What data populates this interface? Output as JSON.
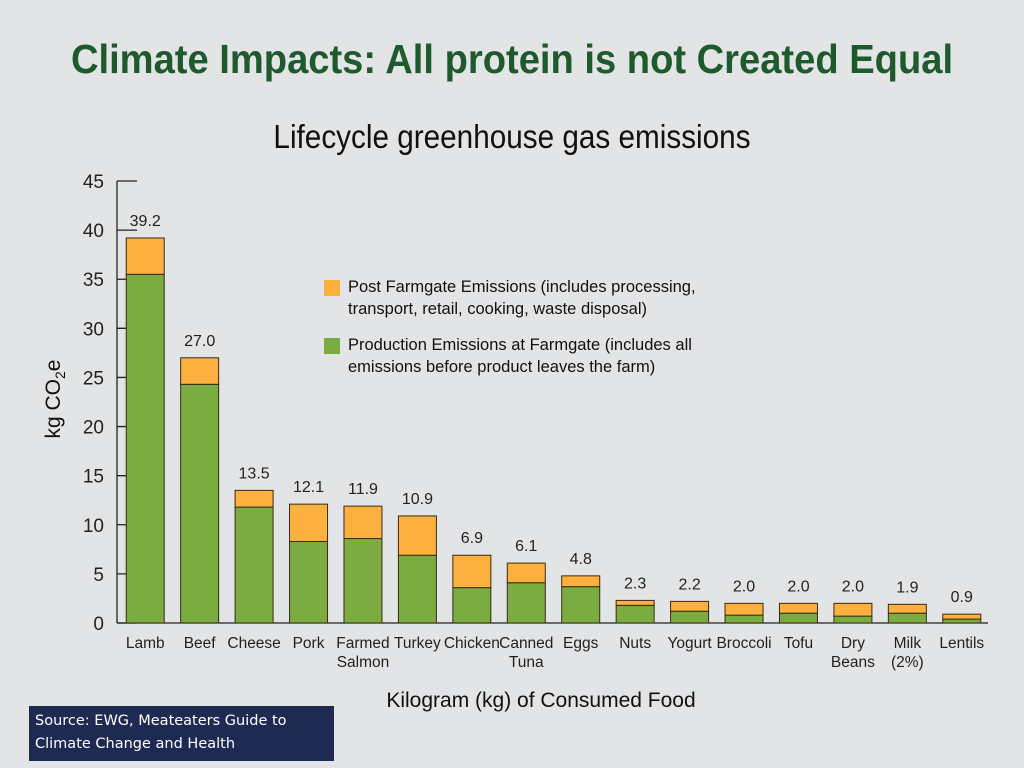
{
  "slide": {
    "title": "Climate Impacts: All protein is not Created Equal",
    "source": "Source: EWG, Meateaters Guide to Climate Change and Health"
  },
  "chart_data": {
    "type": "bar",
    "stacked": true,
    "title": "Lifecycle greenhouse gas emissions",
    "xlabel": "Kilogram (kg) of Consumed Food",
    "ylabel": "kg CO₂e",
    "ylim": [
      0,
      45
    ],
    "yticks": [
      0,
      5,
      10,
      15,
      20,
      25,
      30,
      35,
      40,
      45
    ],
    "grid": false,
    "legend_position": "center-right",
    "categories": [
      [
        "Lamb"
      ],
      [
        "Beef"
      ],
      [
        "Cheese"
      ],
      [
        "Pork"
      ],
      [
        "Farmed",
        "Salmon"
      ],
      [
        "Turkey"
      ],
      [
        "Chicken"
      ],
      [
        "Canned",
        "Tuna"
      ],
      [
        "Eggs"
      ],
      [
        "Nuts"
      ],
      [
        "Yogurt"
      ],
      [
        "Broccoli"
      ],
      [
        "Tofu"
      ],
      [
        "Dry",
        "Beans"
      ],
      [
        "Milk",
        "(2%)"
      ],
      [
        "Lentils"
      ]
    ],
    "series": [
      {
        "name": "Production Emissions at Farmgate (includes all emissions before product leaves the farm)",
        "legend_lines": [
          "Production Emissions at Farmgate (includes all",
          "emissions before product leaves the farm)"
        ],
        "color": "#7aac41",
        "values": [
          35.5,
          24.3,
          11.8,
          8.3,
          8.6,
          6.9,
          3.6,
          4.1,
          3.7,
          1.8,
          1.2,
          0.8,
          1.0,
          0.7,
          1.0,
          0.4
        ]
      },
      {
        "name": "Post Farmgate Emissions (includes processing, transport, retail, cooking, waste disposal)",
        "legend_lines": [
          "Post Farmgate Emissions (includes processing,",
          "transport, retail, cooking, waste disposal)"
        ],
        "color": "#fbb040",
        "values": [
          3.7,
          2.7,
          1.7,
          3.8,
          3.3,
          4.0,
          3.3,
          2.0,
          1.1,
          0.5,
          1.0,
          1.2,
          1.0,
          1.3,
          0.9,
          0.5
        ]
      }
    ],
    "totals": [
      "39.2",
      "27.0",
      "13.5",
      "12.1",
      "11.9",
      "10.9",
      "6.9",
      "6.1",
      "4.8",
      "2.3",
      "2.2",
      "2.0",
      "2.0",
      "2.0",
      "1.9",
      "0.9"
    ]
  }
}
